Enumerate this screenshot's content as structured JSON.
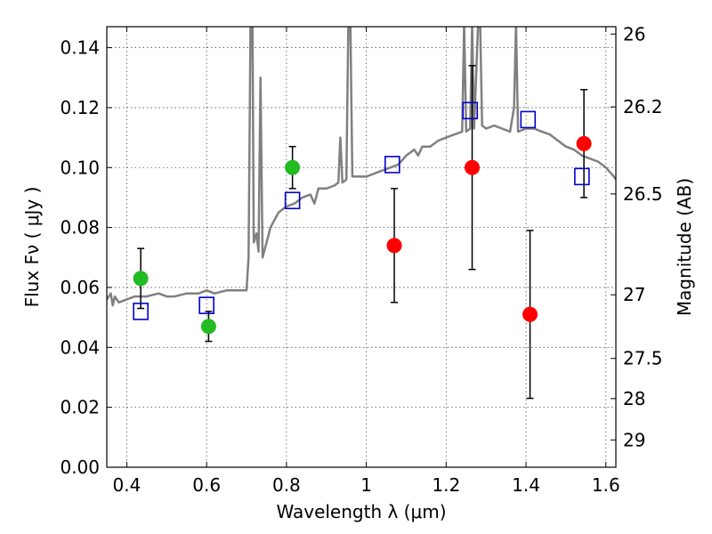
{
  "chart_data": {
    "type": "scatter",
    "xlabel": "Wavelength  λ (μm)",
    "ylabel": "Flux  Fν  ( μJy )",
    "y2label": "Magnitude (AB)",
    "xlim": [
      0.35,
      1.625
    ],
    "ylim": [
      0.0,
      0.147
    ],
    "grid": true,
    "x_ticks": [
      {
        "value": 0.4,
        "label": "0.4"
      },
      {
        "value": 0.6,
        "label": "0.6"
      },
      {
        "value": 0.8,
        "label": "0.8"
      },
      {
        "value": 1.0,
        "label": "1"
      },
      {
        "value": 1.2,
        "label": "1.2"
      },
      {
        "value": 1.4,
        "label": "1.4"
      },
      {
        "value": 1.6,
        "label": "1.6"
      }
    ],
    "y_ticks": [
      {
        "value": 0.0,
        "label": "0.00"
      },
      {
        "value": 0.02,
        "label": "0.02"
      },
      {
        "value": 0.04,
        "label": "0.04"
      },
      {
        "value": 0.06,
        "label": "0.06"
      },
      {
        "value": 0.08,
        "label": "0.08"
      },
      {
        "value": 0.1,
        "label": "0.10"
      },
      {
        "value": 0.12,
        "label": "0.12"
      },
      {
        "value": 0.14,
        "label": "0.14"
      }
    ],
    "y2_ticks": [
      {
        "mag": 26.0,
        "label": "26"
      },
      {
        "mag": 26.2,
        "label": "26.2"
      },
      {
        "mag": 26.5,
        "label": "26.5"
      },
      {
        "mag": 27.0,
        "label": "27"
      },
      {
        "mag": 27.5,
        "label": "27.5"
      },
      {
        "mag": 28.0,
        "label": "28"
      },
      {
        "mag": 29.0,
        "label": "29"
      }
    ],
    "series": [
      {
        "kind": "line",
        "color": "#808080",
        "points": [
          [
            0.35,
            0.056
          ],
          [
            0.36,
            0.058
          ],
          [
            0.365,
            0.054
          ],
          [
            0.37,
            0.057
          ],
          [
            0.38,
            0.055
          ],
          [
            0.4,
            0.056
          ],
          [
            0.42,
            0.057
          ],
          [
            0.45,
            0.057
          ],
          [
            0.48,
            0.058
          ],
          [
            0.5,
            0.057
          ],
          [
            0.52,
            0.057
          ],
          [
            0.55,
            0.058
          ],
          [
            0.58,
            0.058
          ],
          [
            0.6,
            0.059
          ],
          [
            0.62,
            0.058
          ],
          [
            0.65,
            0.059
          ],
          [
            0.68,
            0.059
          ],
          [
            0.7,
            0.059
          ],
          [
            0.705,
            0.07
          ],
          [
            0.71,
            0.148
          ],
          [
            0.715,
            0.148
          ],
          [
            0.718,
            0.075
          ],
          [
            0.725,
            0.078
          ],
          [
            0.73,
            0.072
          ],
          [
            0.735,
            0.13
          ],
          [
            0.74,
            0.07
          ],
          [
            0.75,
            0.075
          ],
          [
            0.76,
            0.08
          ],
          [
            0.78,
            0.085
          ],
          [
            0.8,
            0.087
          ],
          [
            0.82,
            0.088
          ],
          [
            0.84,
            0.09
          ],
          [
            0.86,
            0.091
          ],
          [
            0.87,
            0.088
          ],
          [
            0.88,
            0.093
          ],
          [
            0.9,
            0.093
          ],
          [
            0.92,
            0.094
          ],
          [
            0.93,
            0.095
          ],
          [
            0.935,
            0.11
          ],
          [
            0.94,
            0.095
          ],
          [
            0.95,
            0.096
          ],
          [
            0.955,
            0.148
          ],
          [
            0.96,
            0.148
          ],
          [
            0.965,
            0.097
          ],
          [
            0.98,
            0.097
          ],
          [
            1.0,
            0.097
          ],
          [
            1.02,
            0.098
          ],
          [
            1.04,
            0.099
          ],
          [
            1.06,
            0.1
          ],
          [
            1.08,
            0.101
          ],
          [
            1.1,
            0.104
          ],
          [
            1.12,
            0.106
          ],
          [
            1.13,
            0.104
          ],
          [
            1.14,
            0.107
          ],
          [
            1.16,
            0.107
          ],
          [
            1.18,
            0.109
          ],
          [
            1.2,
            0.11
          ],
          [
            1.22,
            0.111
          ],
          [
            1.24,
            0.112
          ],
          [
            1.245,
            0.148
          ],
          [
            1.25,
            0.112
          ],
          [
            1.26,
            0.113
          ],
          [
            1.265,
            0.148
          ],
          [
            1.27,
            0.113
          ],
          [
            1.28,
            0.148
          ],
          [
            1.285,
            0.148
          ],
          [
            1.29,
            0.114
          ],
          [
            1.3,
            0.113
          ],
          [
            1.32,
            0.114
          ],
          [
            1.34,
            0.113
          ],
          [
            1.36,
            0.112
          ],
          [
            1.37,
            0.12
          ],
          [
            1.375,
            0.148
          ],
          [
            1.38,
            0.112
          ],
          [
            1.4,
            0.113
          ],
          [
            1.42,
            0.113
          ],
          [
            1.44,
            0.112
          ],
          [
            1.46,
            0.111
          ],
          [
            1.48,
            0.109
          ],
          [
            1.5,
            0.107
          ],
          [
            1.52,
            0.106
          ],
          [
            1.54,
            0.104
          ],
          [
            1.56,
            0.103
          ],
          [
            1.58,
            0.102
          ],
          [
            1.6,
            0.1
          ],
          [
            1.62,
            0.097
          ],
          [
            1.625,
            0.096
          ]
        ]
      },
      {
        "kind": "points",
        "marker": "circle",
        "color": "#22bb22",
        "x": [
          0.435,
          0.605,
          0.815
        ],
        "y": [
          0.063,
          0.047,
          0.1
        ],
        "yerr": [
          0.01,
          0.005,
          0.007
        ]
      },
      {
        "kind": "points",
        "marker": "circle",
        "color": "#ff0000",
        "x": [
          1.07,
          1.265,
          1.41,
          1.545
        ],
        "y": [
          0.074,
          0.1,
          0.051,
          0.108
        ],
        "yerr": [
          0.019,
          0.034,
          0.028,
          0.018
        ]
      },
      {
        "kind": "points",
        "marker": "square-open",
        "color": "#0000cc",
        "x": [
          0.435,
          0.6,
          0.815,
          1.065,
          1.26,
          1.405,
          1.54
        ],
        "y": [
          0.052,
          0.054,
          0.089,
          0.101,
          0.119,
          0.116,
          0.097
        ]
      }
    ]
  }
}
